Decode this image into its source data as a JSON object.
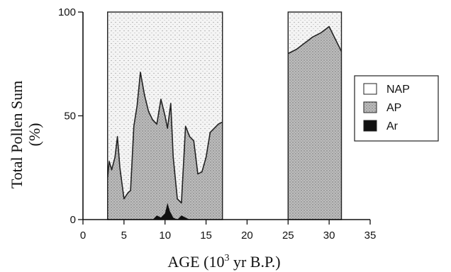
{
  "chart_data": {
    "type": "area",
    "title": "",
    "xlabel": "AGE (10",
    "xlabel_sup": "3",
    "xlabel_tail": " yr B.P.)",
    "ylabel_line1": "Total Pollen Sum",
    "ylabel_line2": "(%)",
    "xlim": [
      0,
      35
    ],
    "ylim": [
      0,
      100
    ],
    "x_ticks": [
      0,
      5,
      10,
      15,
      20,
      25,
      30,
      35
    ],
    "y_ticks": [
      0,
      50,
      100
    ],
    "x_tick_labels": [
      "0",
      "5",
      "10",
      "15",
      "20",
      "25",
      "30",
      "35"
    ],
    "y_tick_labels": [
      "0",
      "50",
      "100"
    ],
    "grid": false,
    "legend_position": "right",
    "legend": [
      {
        "name": "NAP",
        "pattern": "light-speckle"
      },
      {
        "name": "AP",
        "pattern": "dense-stipple"
      },
      {
        "name": "Ar",
        "pattern": "solid-black"
      }
    ],
    "colors": {
      "ap": "#b4b4b4",
      "nap": "#f1f1f1",
      "ar": "#111111",
      "line": "#222222"
    },
    "segments": [
      {
        "x_range": [
          3,
          17
        ],
        "ap": [
          [
            3.0,
            20
          ],
          [
            3.2,
            28
          ],
          [
            3.5,
            24
          ],
          [
            3.9,
            30
          ],
          [
            4.2,
            40
          ],
          [
            4.5,
            25
          ],
          [
            5.0,
            10
          ],
          [
            5.5,
            13
          ],
          [
            5.8,
            14
          ],
          [
            6.2,
            45
          ],
          [
            6.6,
            55
          ],
          [
            7.0,
            71
          ],
          [
            7.5,
            60
          ],
          [
            8.0,
            52
          ],
          [
            8.5,
            48
          ],
          [
            9.0,
            46
          ],
          [
            9.5,
            58
          ],
          [
            10.0,
            50
          ],
          [
            10.3,
            44
          ],
          [
            10.7,
            56
          ],
          [
            11.0,
            30
          ],
          [
            11.5,
            10
          ],
          [
            12.0,
            8
          ],
          [
            12.5,
            45
          ],
          [
            13.0,
            40
          ],
          [
            13.5,
            38
          ],
          [
            14.0,
            22
          ],
          [
            14.5,
            23
          ],
          [
            15.0,
            30
          ],
          [
            15.5,
            42
          ],
          [
            16.5,
            46
          ],
          [
            17.0,
            47
          ]
        ],
        "ar": [
          [
            8.5,
            0
          ],
          [
            9.0,
            2
          ],
          [
            9.5,
            1
          ],
          [
            10.0,
            3
          ],
          [
            10.3,
            8
          ],
          [
            10.6,
            4
          ],
          [
            11.0,
            1
          ],
          [
            11.5,
            0
          ],
          [
            12.0,
            2
          ],
          [
            12.5,
            1
          ],
          [
            13.0,
            0
          ]
        ]
      },
      {
        "x_range": [
          25,
          31.5
        ],
        "ap": [
          [
            25,
            80
          ],
          [
            26,
            82
          ],
          [
            27,
            85
          ],
          [
            28,
            88
          ],
          [
            29,
            90
          ],
          [
            30,
            93
          ],
          [
            31.5,
            81
          ]
        ],
        "ar": []
      }
    ]
  }
}
